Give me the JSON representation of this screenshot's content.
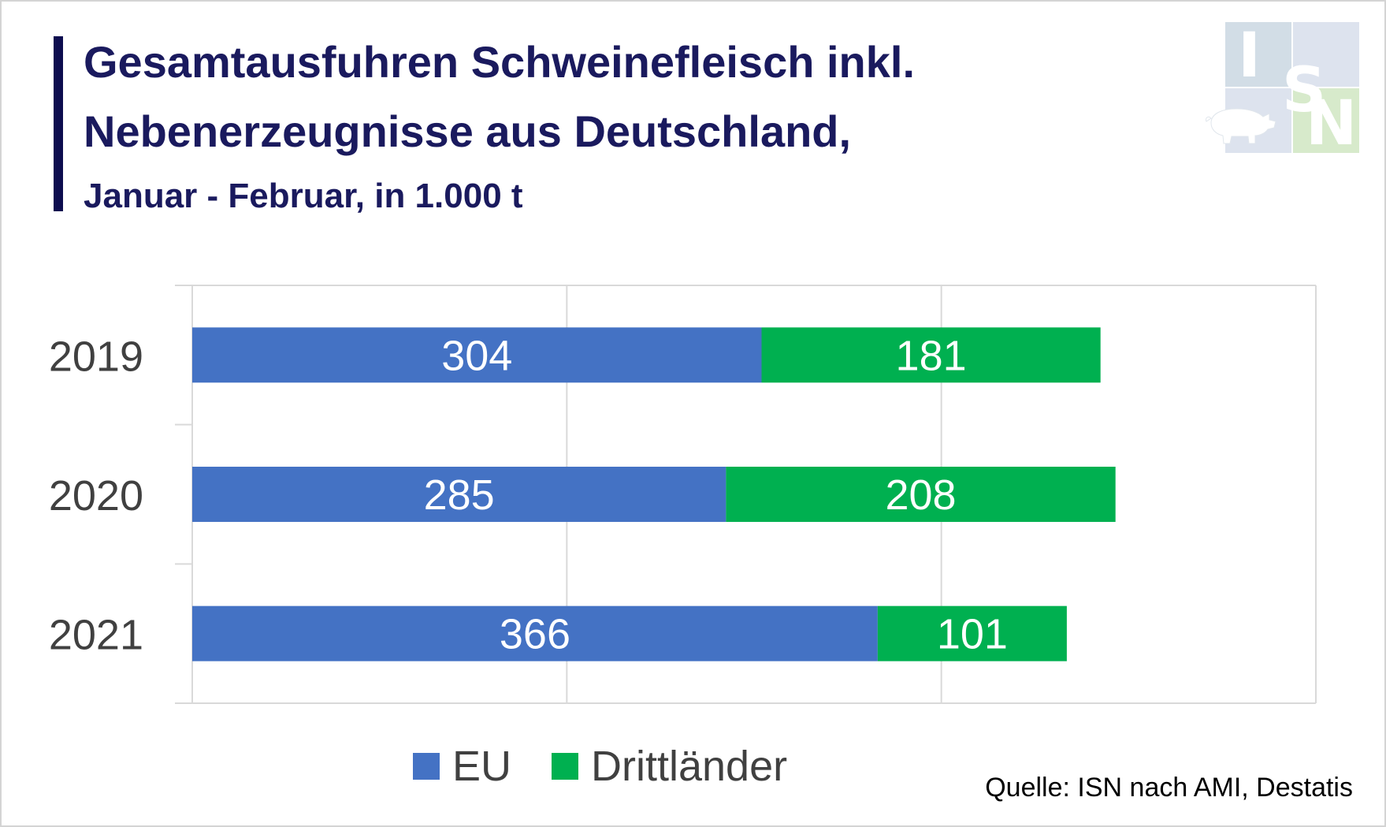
{
  "title": {
    "line1": "Gesamtausfuhren Schweinefleisch inkl.",
    "line2": "Nebenerzeugnisse aus Deutschland,",
    "line3": "Januar - Februar, in 1.000 t"
  },
  "logo": {
    "letters": [
      "I",
      "S",
      "N"
    ],
    "icon": "pig-icon"
  },
  "source": "Quelle: ISN nach AMI, Destatis",
  "colors": {
    "eu": "#4472C4",
    "drittlaender": "#00B050",
    "title": "#1a1a5e",
    "grid": "#d9d9d9",
    "axis_text": "#404040"
  },
  "chart_data": {
    "type": "bar",
    "orientation": "horizontal",
    "stacked": true,
    "categories": [
      "2019",
      "2020",
      "2021"
    ],
    "series": [
      {
        "name": "EU",
        "values": [
          304,
          285,
          366
        ],
        "color": "#4472C4"
      },
      {
        "name": "Drittländer",
        "values": [
          181,
          208,
          101
        ],
        "color": "#00B050"
      }
    ],
    "xlim": [
      0,
      600
    ],
    "grid": true,
    "legend_position": "bottom",
    "data_labels": true
  }
}
